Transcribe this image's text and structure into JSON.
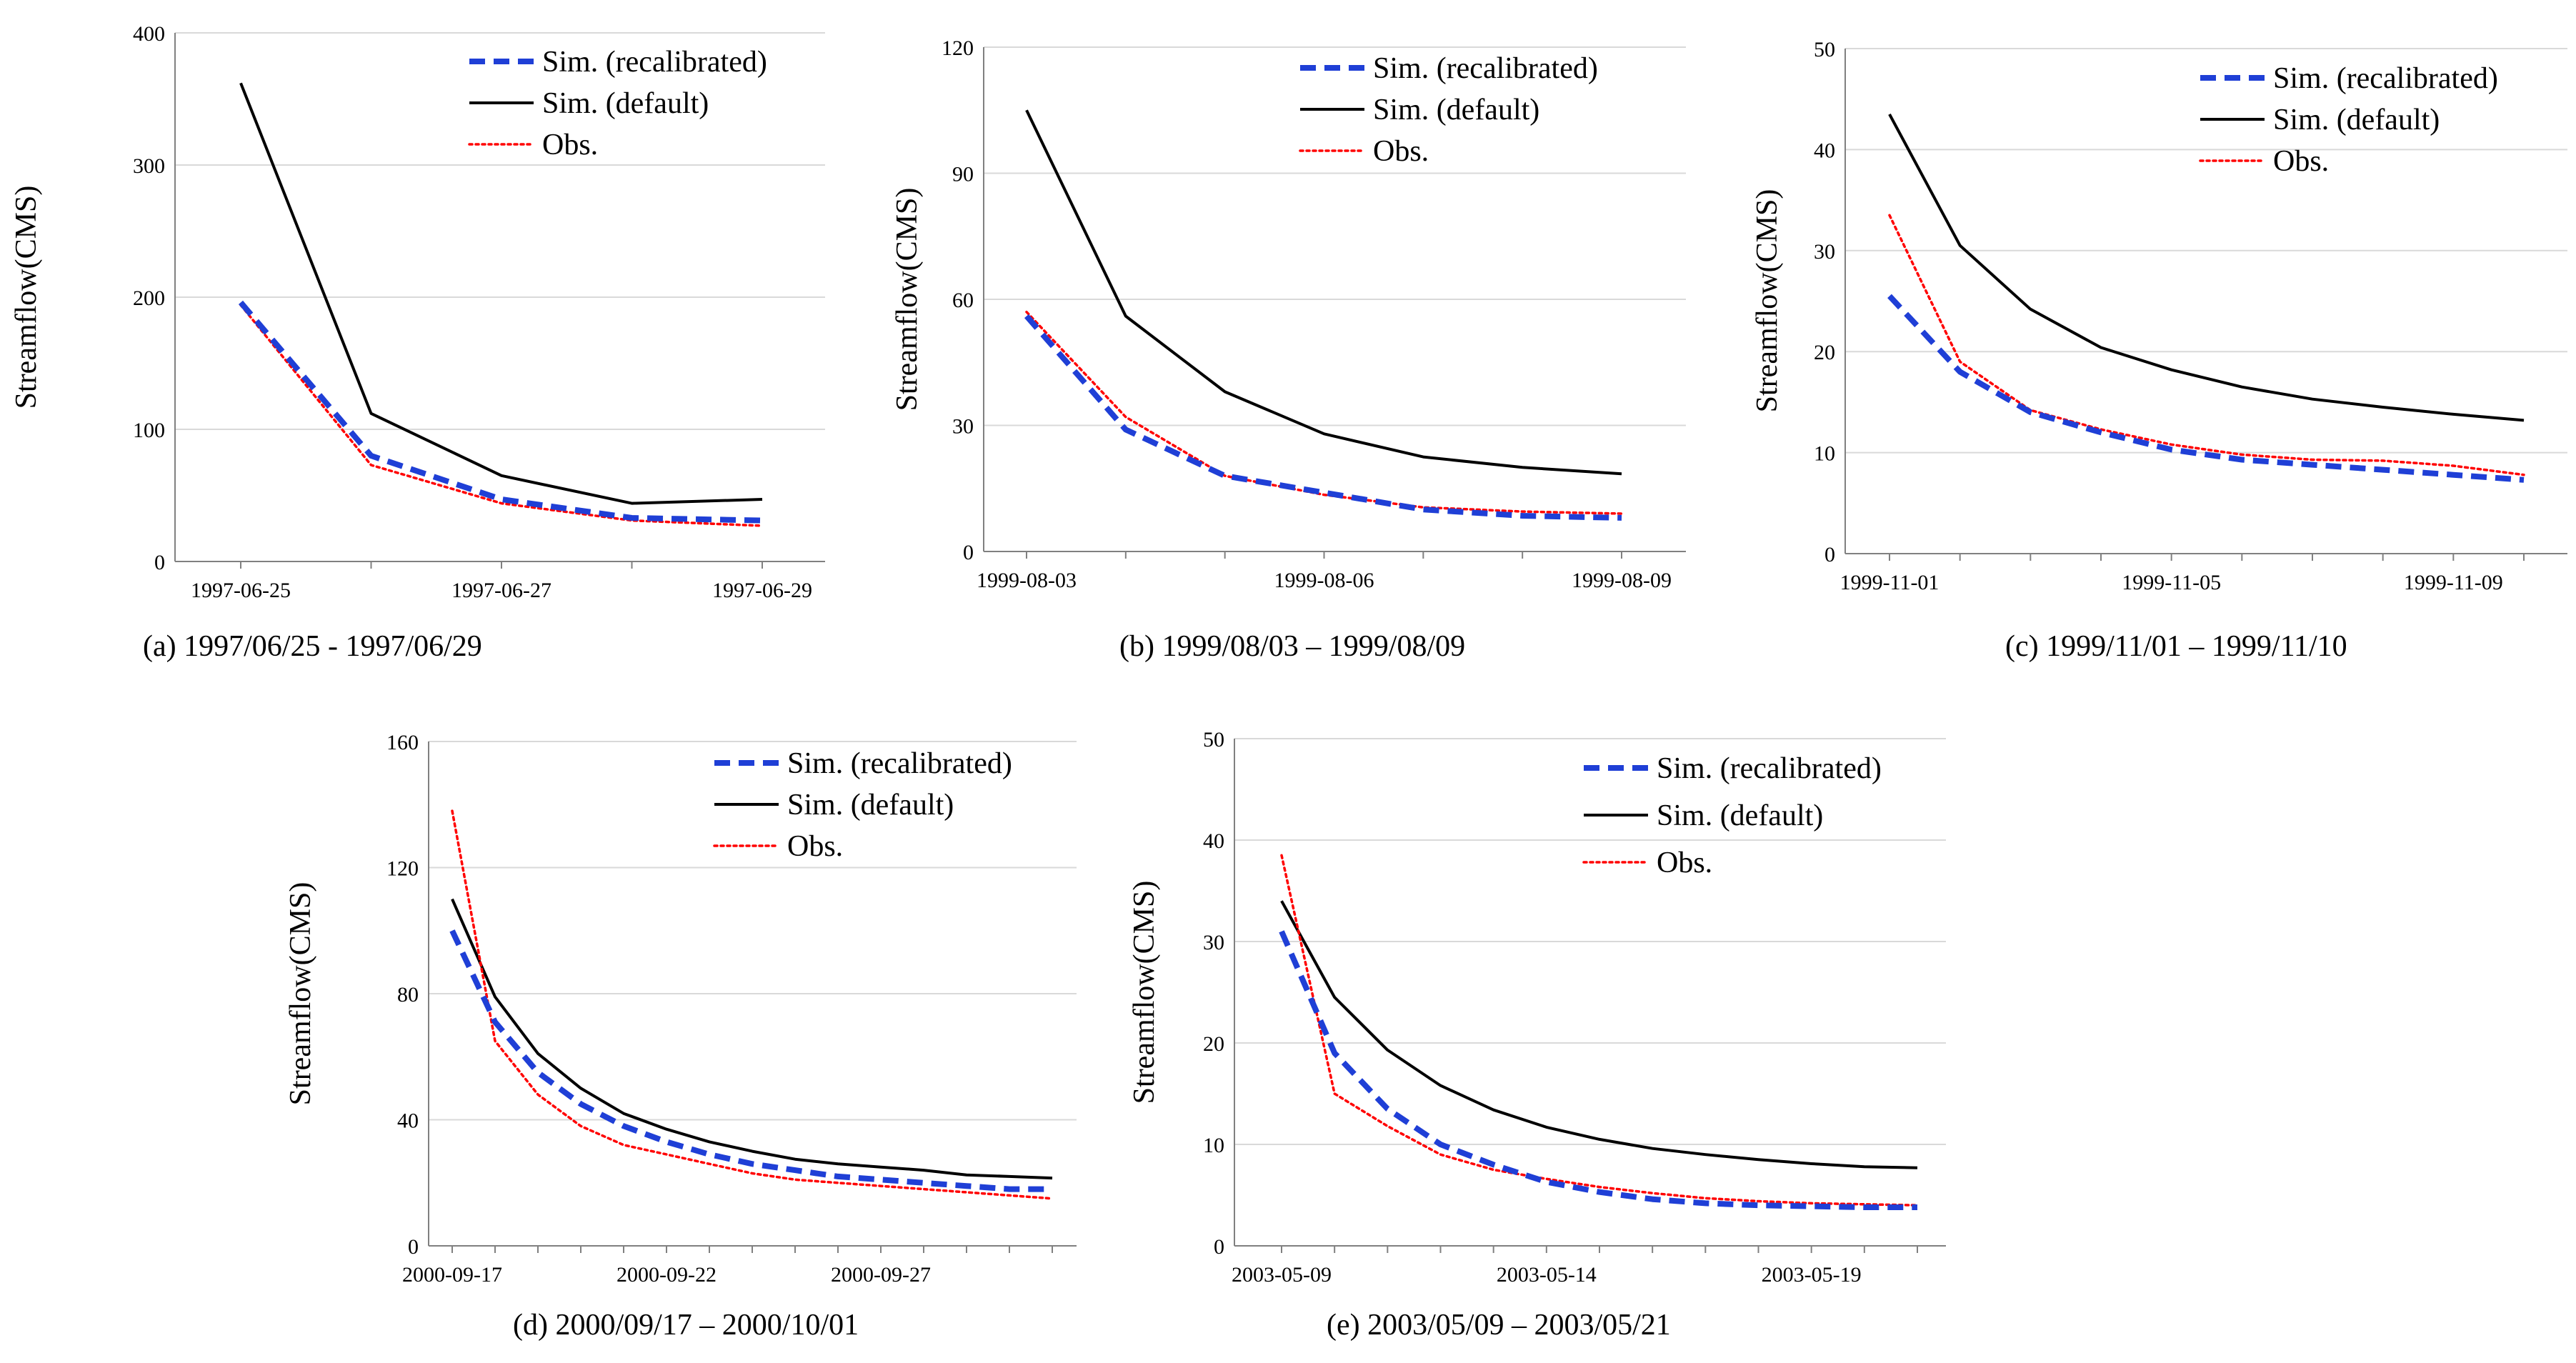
{
  "figure": {
    "colors": {
      "recalibrated": "#1f3fd6",
      "default": "#000000",
      "observed": "#ff0000",
      "grid": "#d9d9d9",
      "axis": "#808080"
    }
  },
  "chart_data": [
    {
      "type": "line",
      "caption": "(a) 1997/06/25  - 1997/06/29",
      "ylabel": "Streamflow(CMS)",
      "x": [
        "1997-06-25",
        "1997-06-26",
        "1997-06-27",
        "1997-06-28",
        "1997-06-29"
      ],
      "xtick_labels": [
        "1997-06-25",
        "1997-06-27",
        "1997-06-29"
      ],
      "ylim": [
        0,
        400
      ],
      "yticks": [
        0,
        100,
        200,
        300,
        400
      ],
      "legend": {
        "position": "top-right",
        "entries": [
          "Sim. (recalibrated)",
          "Sim. (default)",
          "Obs."
        ]
      },
      "series": [
        {
          "name": "Sim. (recalibrated)",
          "style": "dashed",
          "values": [
            196,
            80,
            47,
            33,
            31
          ]
        },
        {
          "name": "Sim. (default)",
          "style": "solid",
          "values": [
            362,
            112,
            65,
            44,
            47
          ]
        },
        {
          "name": "Obs.",
          "style": "dotted",
          "values": [
            194,
            73,
            44,
            31,
            27
          ]
        }
      ]
    },
    {
      "type": "line",
      "caption": "(b) 1999/08/03  – 1999/08/09",
      "ylabel": "Streamflow(CMS)",
      "x": [
        "1999-08-03",
        "1999-08-04",
        "1999-08-05",
        "1999-08-06",
        "1999-08-07",
        "1999-08-08",
        "1999-08-09"
      ],
      "xtick_labels": [
        "1999-08-03",
        "1999-08-06",
        "1999-08-09"
      ],
      "ylim": [
        0,
        120
      ],
      "yticks": [
        0,
        30,
        60,
        90,
        120
      ],
      "legend": {
        "position": "top-right",
        "entries": [
          "Sim. (recalibrated)",
          "Sim. (default)",
          "Obs."
        ]
      },
      "series": [
        {
          "name": "Sim. (recalibrated)",
          "style": "dashed",
          "values": [
            56,
            29,
            18,
            14,
            10,
            8.5,
            8
          ]
        },
        {
          "name": "Sim. (default)",
          "style": "solid",
          "values": [
            105,
            56,
            38,
            28,
            22.5,
            20,
            18.5
          ]
        },
        {
          "name": "Obs.",
          "style": "dotted",
          "values": [
            57,
            32,
            18,
            13.5,
            10.5,
            9.5,
            9
          ]
        }
      ]
    },
    {
      "type": "line",
      "caption": "(c) 1999/11/01  – 1999/11/10",
      "ylabel": "Streamflow(CMS)",
      "x": [
        "1999-11-01",
        "1999-11-02",
        "1999-11-03",
        "1999-11-04",
        "1999-11-05",
        "1999-11-06",
        "1999-11-07",
        "1999-11-08",
        "1999-11-09",
        "1999-11-10"
      ],
      "xtick_labels": [
        "1999-11-01",
        "1999-11-05",
        "1999-11-09"
      ],
      "ylim": [
        0,
        50
      ],
      "yticks": [
        0,
        10,
        20,
        30,
        40,
        50
      ],
      "legend": {
        "position": "top-right",
        "entries": [
          "Sim. (recalibrated)",
          "Sim. (default)",
          "Obs."
        ]
      },
      "series": [
        {
          "name": "Sim. (recalibrated)",
          "style": "dashed",
          "values": [
            25.5,
            18,
            14,
            12,
            10.3,
            9.3,
            8.8,
            8.3,
            7.8,
            7.3
          ]
        },
        {
          "name": "Sim. (default)",
          "style": "solid",
          "values": [
            43.5,
            30.5,
            24.2,
            20.4,
            18.2,
            16.5,
            15.3,
            14.5,
            13.8,
            13.2
          ]
        },
        {
          "name": "Obs.",
          "style": "dotted",
          "values": [
            33.5,
            19,
            14.2,
            12.3,
            10.8,
            9.8,
            9.3,
            9.2,
            8.7,
            7.8
          ]
        }
      ]
    },
    {
      "type": "line",
      "caption": "(d) 2000/09/17  – 2000/10/01",
      "ylabel": "Streamflow(CMS)",
      "x": [
        "2000-09-17",
        "2000-09-18",
        "2000-09-19",
        "2000-09-20",
        "2000-09-21",
        "2000-09-22",
        "2000-09-23",
        "2000-09-24",
        "2000-09-25",
        "2000-09-26",
        "2000-09-27",
        "2000-09-28",
        "2000-09-29",
        "2000-09-30",
        "2000-10-01"
      ],
      "xtick_labels": [
        "2000-09-17",
        "2000-09-22",
        "2000-09-27"
      ],
      "ylim": [
        0,
        160
      ],
      "yticks": [
        0,
        40,
        80,
        120,
        160
      ],
      "legend": {
        "position": "top-right",
        "entries": [
          "Sim. (recalibrated)",
          "Sim. (default)",
          "Obs."
        ]
      },
      "series": [
        {
          "name": "Sim. (recalibrated)",
          "style": "dashed",
          "values": [
            100,
            71,
            55,
            45,
            38,
            33,
            29,
            26,
            24,
            22,
            21,
            20,
            19,
            18,
            18
          ]
        },
        {
          "name": "Sim. (default)",
          "style": "solid",
          "values": [
            110,
            79,
            61,
            50,
            42,
            37,
            33,
            30,
            27.5,
            26,
            25,
            24,
            22.5,
            22,
            21.5
          ]
        },
        {
          "name": "Obs.",
          "style": "dotted",
          "values": [
            138,
            65,
            48,
            38,
            32,
            29,
            26,
            23,
            21,
            20,
            19,
            18,
            17,
            16,
            15
          ]
        }
      ]
    },
    {
      "type": "line",
      "caption": "(e) 2003/05/09  – 2003/05/21",
      "ylabel": "Streamflow(CMS)",
      "x": [
        "2003-05-09",
        "2003-05-10",
        "2003-05-11",
        "2003-05-12",
        "2003-05-13",
        "2003-05-14",
        "2003-05-15",
        "2003-05-16",
        "2003-05-17",
        "2003-05-18",
        "2003-05-19",
        "2003-05-20",
        "2003-05-21"
      ],
      "xtick_labels": [
        "2003-05-09",
        "2003-05-14",
        "2003-05-19"
      ],
      "ylim": [
        0,
        50
      ],
      "yticks": [
        0,
        10,
        20,
        30,
        40,
        50
      ],
      "legend": {
        "position": "top-right",
        "entries": [
          "Sim. (recalibrated)",
          "Sim. (default)",
          "Obs."
        ]
      },
      "series": [
        {
          "name": "Sim. (recalibrated)",
          "style": "dashed",
          "values": [
            31,
            19,
            13.5,
            10,
            8,
            6.3,
            5.3,
            4.6,
            4.2,
            4,
            3.9,
            3.8,
            3.8
          ]
        },
        {
          "name": "Sim. (default)",
          "style": "solid",
          "values": [
            34,
            24.5,
            19.3,
            15.8,
            13.4,
            11.7,
            10.5,
            9.6,
            9,
            8.5,
            8.1,
            7.8,
            7.7
          ]
        },
        {
          "name": "Obs.",
          "style": "dotted",
          "values": [
            38.5,
            15,
            11.8,
            9,
            7.5,
            6.6,
            5.8,
            5.2,
            4.7,
            4.4,
            4.2,
            4.1,
            4
          ]
        }
      ]
    }
  ]
}
